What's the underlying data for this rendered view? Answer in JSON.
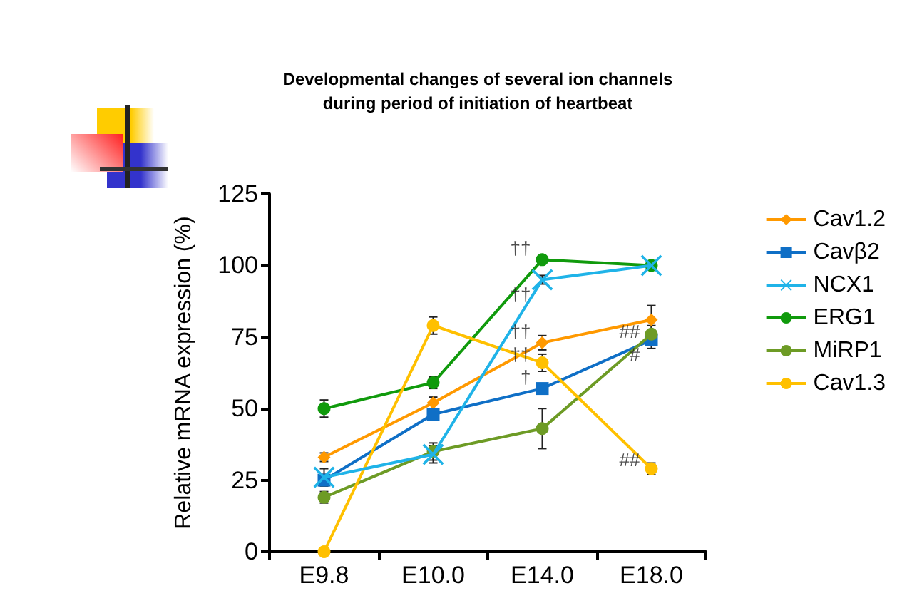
{
  "chart_data": {
    "type": "line",
    "title": "Developmental changes of several ion channels\nduring period of initiation of heartbeat",
    "ylabel": "Relative mRNA expression (%)",
    "categories": [
      "E9.8",
      "E10.0",
      "E14.0",
      "E18.0"
    ],
    "series": [
      {
        "name": "Cav1.2",
        "color": "#ff9900",
        "marker": "diamond",
        "values": [
          33,
          52,
          73,
          81
        ],
        "errors": [
          1.5,
          2,
          2.5,
          5
        ]
      },
      {
        "name": "Cavβ2",
        "color": "#0f6fc6",
        "marker": "square",
        "values": [
          25,
          48,
          57,
          74
        ],
        "errors": [
          2,
          null,
          null,
          3
        ]
      },
      {
        "name": "NCX1",
        "color": "#1fb3e8",
        "marker": "cross",
        "values": [
          26,
          34,
          95,
          100
        ],
        "errors": [
          3,
          3,
          1.5,
          null
        ]
      },
      {
        "name": "ERG1",
        "color": "#109a0c",
        "marker": "circle",
        "values": [
          50,
          59,
          102,
          100
        ],
        "errors": [
          3,
          2,
          null,
          null
        ]
      },
      {
        "name": "MiRP1",
        "color": "#6d9b25",
        "marker": "circle",
        "values": [
          19,
          35,
          43,
          76
        ],
        "errors": [
          2,
          3,
          7,
          3
        ]
      },
      {
        "name": "Cav1.3",
        "color": "#ffc000",
        "marker": "circle",
        "values": [
          0,
          79,
          66,
          29
        ],
        "errors": [
          0,
          3,
          3,
          2
        ]
      }
    ],
    "annotations": [
      {
        "text": "††",
        "x": "E14.0",
        "y": 106
      },
      {
        "text": "††",
        "x": "E14.0",
        "y": 90
      },
      {
        "text": "††",
        "x": "E14.0",
        "y": 77
      },
      {
        "text": "††",
        "x": "E14.0",
        "y": 69
      },
      {
        "text": "†",
        "x": "E14.0",
        "y": 61
      },
      {
        "text": "##",
        "x": "E18.0",
        "y": 77
      },
      {
        "text": "#",
        "x": "E18.0",
        "y": 69
      },
      {
        "text": "##",
        "x": "E18.0",
        "y": 32
      }
    ],
    "ylim": [
      0,
      125
    ],
    "yticks": [
      0,
      25,
      50,
      75,
      100,
      125
    ],
    "grid": false,
    "legend": "right"
  }
}
